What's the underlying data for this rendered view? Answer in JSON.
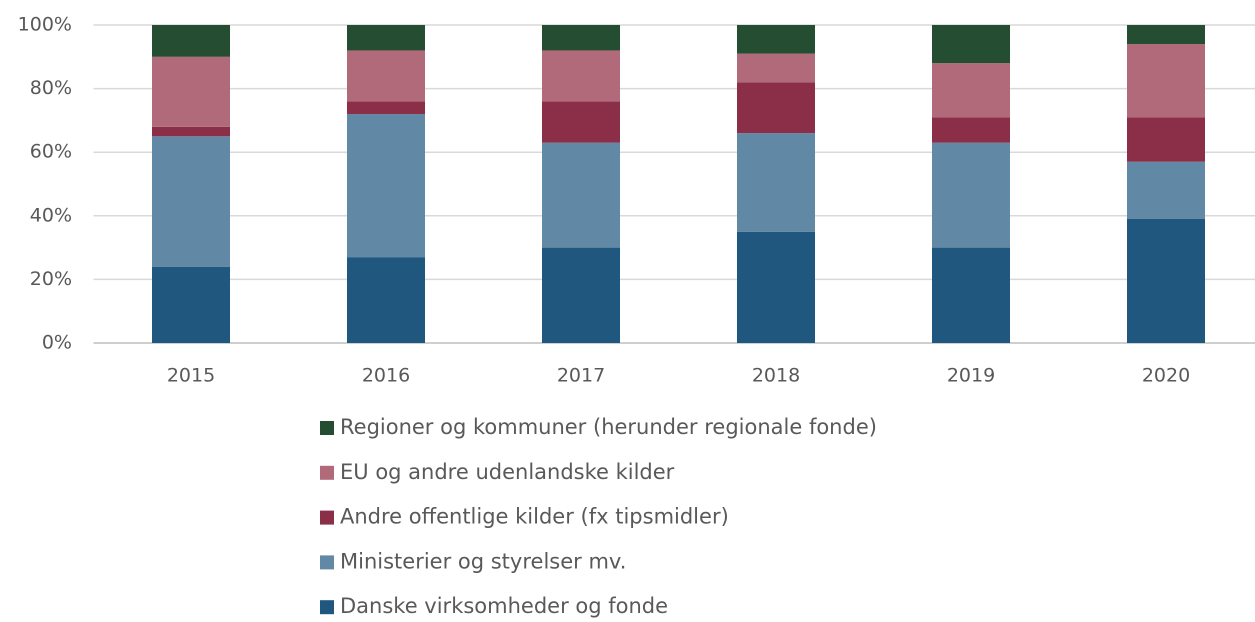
{
  "chart_data": {
    "type": "stacked_bar",
    "categories": [
      "2015",
      "2016",
      "2017",
      "2018",
      "2019",
      "2020"
    ],
    "series": [
      {
        "name": "Danske virksomheder og fonde",
        "color": "#1f577f",
        "values": [
          24,
          27,
          30,
          35,
          30,
          39
        ]
      },
      {
        "name": "Ministerier og styrelser mv.",
        "color": "#6189a5",
        "values": [
          41,
          45,
          33,
          31,
          33,
          18
        ]
      },
      {
        "name": "Andre offentlige kilder (fx tipsmidler)",
        "color": "#8b2e47",
        "values": [
          3,
          4,
          13,
          16,
          8,
          14
        ]
      },
      {
        "name": "EU og andre udenlandske kilder",
        "color": "#b06a79",
        "values": [
          22,
          16,
          16,
          9,
          17,
          23
        ]
      },
      {
        "name": "Regioner og kommuner (herunder regionale fonde)",
        "color": "#254d32",
        "values": [
          10,
          8,
          8,
          9,
          12,
          6
        ]
      }
    ],
    "ylim": [
      0,
      100
    ],
    "yticks": [
      {
        "value": 0,
        "label": "0%"
      },
      {
        "value": 20,
        "label": "20%"
      },
      {
        "value": 40,
        "label": "40%"
      },
      {
        "value": 60,
        "label": "60%"
      },
      {
        "value": 80,
        "label": "80%"
      },
      {
        "value": 100,
        "label": "100%"
      }
    ],
    "grid": true,
    "legend": "bottom"
  }
}
